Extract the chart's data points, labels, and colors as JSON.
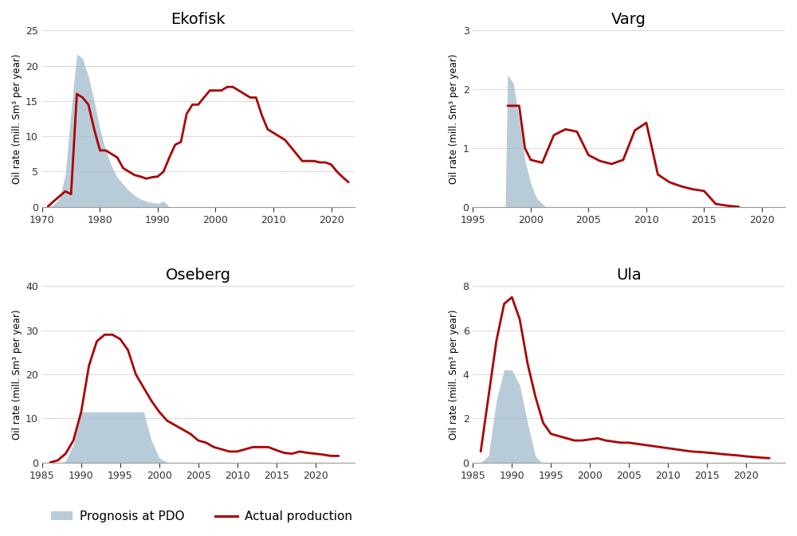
{
  "ekofisk": {
    "title": "Ekofisk",
    "xlim": [
      1970,
      2024
    ],
    "ylim": [
      0,
      25
    ],
    "yticks": [
      0,
      5,
      10,
      15,
      20,
      25
    ],
    "xticks": [
      1970,
      1980,
      1990,
      2000,
      2010,
      2020
    ],
    "prognosis_x": [
      1971,
      1972,
      1973,
      1974,
      1975,
      1976,
      1977,
      1978,
      1979,
      1980,
      1981,
      1982,
      1983,
      1984,
      1985,
      1986,
      1987,
      1988,
      1989,
      1990,
      1991,
      1992
    ],
    "prognosis_y": [
      0.0,
      0.3,
      1.2,
      4.5,
      13.5,
      21.7,
      21.0,
      18.5,
      15.0,
      11.0,
      8.0,
      5.8,
      4.2,
      3.2,
      2.3,
      1.6,
      1.1,
      0.8,
      0.6,
      0.5,
      0.8,
      0.0
    ],
    "actual_x": [
      1971,
      1972,
      1973,
      1974,
      1975,
      1976,
      1977,
      1978,
      1979,
      1980,
      1981,
      1982,
      1983,
      1984,
      1985,
      1986,
      1987,
      1988,
      1989,
      1990,
      1991,
      1992,
      1993,
      1994,
      1995,
      1996,
      1997,
      1998,
      1999,
      2000,
      2001,
      2002,
      2003,
      2004,
      2005,
      2006,
      2007,
      2008,
      2009,
      2010,
      2011,
      2012,
      2013,
      2014,
      2015,
      2016,
      2017,
      2018,
      2019,
      2020,
      2021,
      2022,
      2023
    ],
    "actual_y": [
      0.05,
      0.8,
      1.5,
      2.2,
      1.8,
      16.0,
      15.5,
      14.5,
      11.0,
      8.0,
      8.0,
      7.5,
      7.0,
      5.5,
      5.0,
      4.5,
      4.3,
      4.0,
      4.2,
      4.3,
      5.0,
      7.0,
      8.8,
      9.2,
      13.2,
      14.5,
      14.5,
      15.5,
      16.5,
      16.5,
      16.5,
      17.0,
      17.0,
      16.5,
      16.0,
      15.5,
      15.5,
      13.0,
      11.0,
      10.5,
      10.0,
      9.5,
      8.5,
      7.5,
      6.5,
      6.5,
      6.5,
      6.3,
      6.3,
      6.0,
      5.0,
      4.2,
      3.5
    ]
  },
  "varg": {
    "title": "Varg",
    "xlim": [
      1995,
      2022
    ],
    "ylim": [
      0,
      3
    ],
    "yticks": [
      0,
      1,
      2,
      3
    ],
    "xticks": [
      1995,
      2000,
      2005,
      2010,
      2015,
      2020
    ],
    "prognosis_x": [
      1997.8,
      1998.0,
      1998.5,
      1999.0,
      1999.5,
      2000.0,
      2000.5,
      2001.0,
      2001.3
    ],
    "prognosis_y": [
      0.0,
      2.25,
      2.1,
      1.5,
      0.8,
      0.4,
      0.15,
      0.05,
      0.0
    ],
    "actual_x": [
      1998.0,
      1998.5,
      1999.0,
      1999.5,
      2000.0,
      2001.0,
      2002.0,
      2003.0,
      2004.0,
      2005.0,
      2006.0,
      2007.0,
      2008.0,
      2009.0,
      2010.0,
      2011.0,
      2012.0,
      2013.0,
      2014.0,
      2015.0,
      2016.0,
      2017.0,
      2018.0
    ],
    "actual_y": [
      1.72,
      1.72,
      1.72,
      1.0,
      0.8,
      0.75,
      1.22,
      1.32,
      1.28,
      0.88,
      0.78,
      0.73,
      0.8,
      1.3,
      1.43,
      0.55,
      0.42,
      0.35,
      0.3,
      0.27,
      0.05,
      0.02,
      0.0
    ]
  },
  "oseberg": {
    "title": "Oseberg",
    "xlim": [
      1985,
      2025
    ],
    "ylim": [
      0,
      40
    ],
    "yticks": [
      0,
      10,
      20,
      30,
      40
    ],
    "xticks": [
      1985,
      1990,
      1995,
      2000,
      2005,
      2010,
      2015,
      2020
    ],
    "prognosis_x": [
      1987.5,
      1988.0,
      1989.0,
      1990.0,
      1990.5,
      1995.0,
      1997.0,
      1998.0,
      1999.0,
      2000.0,
      2001.0,
      2001.5
    ],
    "prognosis_y": [
      0.0,
      0.3,
      4.0,
      11.5,
      11.5,
      11.5,
      11.5,
      11.5,
      5.0,
      1.0,
      0.1,
      0.0
    ],
    "actual_x": [
      1986,
      1987,
      1988,
      1989,
      1990,
      1991,
      1992,
      1993,
      1994,
      1995,
      1996,
      1997,
      1998,
      1999,
      2000,
      2001,
      2002,
      2003,
      2004,
      2005,
      2006,
      2007,
      2008,
      2009,
      2010,
      2011,
      2012,
      2013,
      2014,
      2015,
      2016,
      2017,
      2018,
      2019,
      2020,
      2021,
      2022,
      2023
    ],
    "actual_y": [
      0.0,
      0.5,
      2.0,
      5.0,
      11.5,
      22.0,
      27.5,
      29.0,
      29.0,
      28.0,
      25.5,
      20.0,
      17.0,
      14.0,
      11.5,
      9.5,
      8.5,
      7.5,
      6.5,
      5.0,
      4.5,
      3.5,
      3.0,
      2.5,
      2.5,
      3.0,
      3.5,
      3.5,
      3.5,
      2.8,
      2.2,
      2.0,
      2.5,
      2.2,
      2.0,
      1.8,
      1.5,
      1.5
    ]
  },
  "ula": {
    "title": "Ula",
    "xlim": [
      1985,
      2025
    ],
    "ylim": [
      0,
      8
    ],
    "yticks": [
      0,
      2,
      4,
      6,
      8
    ],
    "xticks": [
      1985,
      1990,
      1995,
      2000,
      2005,
      2010,
      2015,
      2020
    ],
    "prognosis_x": [
      1986.0,
      1987.0,
      1988.0,
      1989.0,
      1990.0,
      1991.0,
      1992.0,
      1993.0,
      1993.8
    ],
    "prognosis_y": [
      0.0,
      0.3,
      2.8,
      4.2,
      4.2,
      3.5,
      1.8,
      0.3,
      0.0
    ],
    "actual_x": [
      1986,
      1987,
      1988,
      1989,
      1990,
      1991,
      1992,
      1993,
      1994,
      1995,
      1996,
      1997,
      1998,
      1999,
      2000,
      2001,
      2002,
      2003,
      2004,
      2005,
      2006,
      2007,
      2008,
      2009,
      2010,
      2011,
      2012,
      2013,
      2014,
      2015,
      2016,
      2017,
      2018,
      2019,
      2020,
      2021,
      2022,
      2023
    ],
    "actual_y": [
      0.5,
      3.0,
      5.5,
      7.2,
      7.5,
      6.5,
      4.5,
      3.0,
      1.8,
      1.3,
      1.2,
      1.1,
      1.0,
      1.0,
      1.05,
      1.1,
      1.0,
      0.95,
      0.9,
      0.9,
      0.85,
      0.8,
      0.75,
      0.7,
      0.65,
      0.6,
      0.55,
      0.5,
      0.48,
      0.45,
      0.42,
      0.38,
      0.35,
      0.32,
      0.28,
      0.25,
      0.22,
      0.2
    ]
  },
  "fill_color": "#9BB5C8",
  "fill_alpha": 0.7,
  "line_color": "#AA0000",
  "line_width": 2.0,
  "ylabel": "Oil rate (mill. Sm³ per year)",
  "legend_patch_label": "Prognosis at PDO",
  "legend_line_label": "Actual production",
  "bg_color": "#FFFFFF",
  "axes_bg": "#FFFFFF",
  "bottom_spine_color": "#999999",
  "tick_label_color": "#333333",
  "title_fontsize": 14,
  "ylabel_fontsize": 8.5,
  "tick_fontsize": 9
}
